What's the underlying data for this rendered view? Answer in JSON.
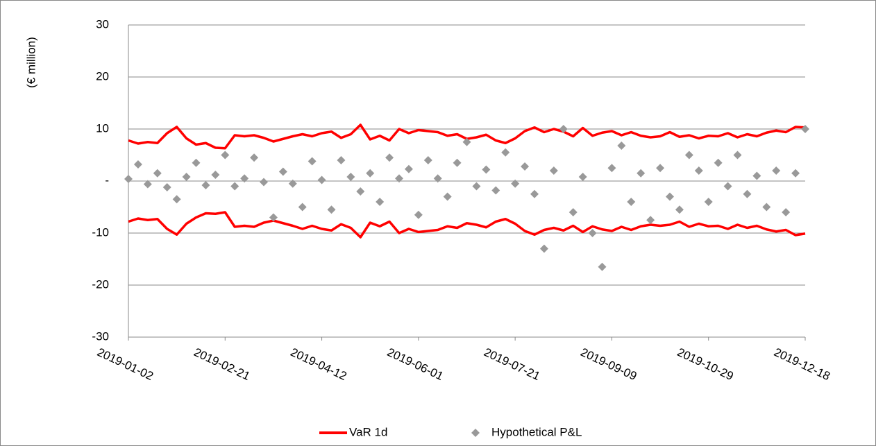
{
  "chart_data": {
    "type": "line-scatter",
    "y_label": "(€ million)",
    "x": [
      "2019-01-02",
      "2019-01-07",
      "2019-01-12",
      "2019-01-17",
      "2019-01-22",
      "2019-01-27",
      "2019-02-01",
      "2019-02-06",
      "2019-02-11",
      "2019-02-16",
      "2019-02-21",
      "2019-02-26",
      "2019-03-03",
      "2019-03-08",
      "2019-03-13",
      "2019-03-18",
      "2019-03-23",
      "2019-03-28",
      "2019-04-02",
      "2019-04-07",
      "2019-04-12",
      "2019-04-17",
      "2019-04-22",
      "2019-04-27",
      "2019-05-02",
      "2019-05-07",
      "2019-05-12",
      "2019-05-17",
      "2019-05-22",
      "2019-05-27",
      "2019-06-01",
      "2019-06-06",
      "2019-06-11",
      "2019-06-16",
      "2019-06-21",
      "2019-06-26",
      "2019-07-01",
      "2019-07-06",
      "2019-07-11",
      "2019-07-16",
      "2019-07-21",
      "2019-07-26",
      "2019-07-31",
      "2019-08-05",
      "2019-08-10",
      "2019-08-15",
      "2019-08-20",
      "2019-08-25",
      "2019-08-30",
      "2019-09-04",
      "2019-09-09",
      "2019-09-14",
      "2019-09-19",
      "2019-09-24",
      "2019-09-29",
      "2019-10-04",
      "2019-10-09",
      "2019-10-14",
      "2019-10-19",
      "2019-10-24",
      "2019-10-29",
      "2019-11-03",
      "2019-11-08",
      "2019-11-13",
      "2019-11-18",
      "2019-11-23",
      "2019-11-28",
      "2019-12-03",
      "2019-12-08",
      "2019-12-13",
      "2019-12-18"
    ],
    "series": [
      {
        "name": "VaR 1d",
        "color": "#ff0000",
        "values": [
          7.8,
          7.2,
          7.5,
          7.3,
          9.2,
          10.4,
          8.2,
          7.0,
          7.3,
          6.4,
          6.3,
          8.8,
          8.6,
          8.8,
          8.3,
          7.6,
          8.1,
          8.6,
          9.0,
          8.6,
          9.2,
          9.5,
          8.3,
          9.0,
          10.8,
          8.0,
          8.7,
          7.8,
          10.0,
          9.2,
          9.8,
          9.6,
          9.4,
          8.7,
          9.0,
          8.1,
          8.4,
          8.9,
          7.8,
          7.3,
          8.2,
          9.6,
          10.3,
          9.4,
          10.0,
          9.5,
          8.6,
          10.2,
          8.7,
          9.3,
          9.6,
          8.8,
          9.4,
          8.7,
          8.4,
          8.6,
          9.4,
          8.5,
          8.8,
          8.2,
          8.7,
          8.6,
          9.2,
          8.4,
          9.0,
          8.6,
          9.3,
          9.7,
          9.4,
          10.4,
          10.3
        ]
      },
      {
        "color": "#ff0000",
        "values": [
          -7.8,
          -7.2,
          -7.5,
          -7.3,
          -9.2,
          -10.3,
          -8.2,
          -7.0,
          -6.2,
          -6.3,
          -6.0,
          -8.8,
          -8.6,
          -8.8,
          -8.0,
          -7.6,
          -8.1,
          -8.6,
          -9.2,
          -8.6,
          -9.2,
          -9.5,
          -8.3,
          -9.0,
          -10.8,
          -8.0,
          -8.7,
          -7.8,
          -10.0,
          -9.2,
          -9.8,
          -9.6,
          -9.4,
          -8.7,
          -9.0,
          -8.1,
          -8.4,
          -8.9,
          -7.8,
          -7.3,
          -8.2,
          -9.6,
          -10.3,
          -9.4,
          -9.0,
          -9.5,
          -8.6,
          -9.8,
          -8.7,
          -9.3,
          -9.6,
          -8.8,
          -9.4,
          -8.7,
          -8.4,
          -8.6,
          -8.4,
          -7.8,
          -8.8,
          -8.2,
          -8.7,
          -8.6,
          -9.2,
          -8.4,
          -9.0,
          -8.6,
          -9.3,
          -9.7,
          -9.4,
          -10.4,
          -10.1
        ]
      },
      {
        "name": "Hypothetical P&L",
        "color": "#999999",
        "type": "scatter",
        "values": [
          0.4,
          3.2,
          -0.6,
          1.5,
          -1.2,
          -3.5,
          0.8,
          3.5,
          -0.8,
          1.2,
          5.0,
          -1.0,
          0.5,
          4.5,
          -0.2,
          -7.0,
          1.8,
          -0.5,
          -5.0,
          3.8,
          0.2,
          -5.5,
          4.0,
          0.8,
          -2.0,
          1.5,
          -4.0,
          4.5,
          0.5,
          2.3,
          -6.5,
          4.0,
          0.5,
          -3.0,
          3.5,
          7.5,
          -1.0,
          2.2,
          -1.8,
          5.5,
          -0.5,
          2.8,
          -2.5,
          -13.0,
          2.0,
          10.0,
          -6.0,
          0.8,
          -10.0,
          -16.5,
          2.5,
          6.8,
          -4.0,
          1.5,
          -7.5,
          2.5,
          -3.0,
          -5.5,
          5.0,
          2.0,
          -4.0,
          3.5,
          -1.0,
          5.0,
          -2.5,
          1.0,
          -5.0,
          2.0,
          -6.0,
          1.5,
          10.0
        ]
      }
    ],
    "ylim": [
      -30,
      30
    ],
    "yticks": [
      -30,
      -20,
      -10,
      {
        "value": 0,
        "label": "-"
      },
      10,
      20,
      30
    ],
    "xlim": [
      "2019-01-02",
      "2019-12-18"
    ],
    "xticks": [
      "2019-01-02",
      "2019-02-21",
      "2019-04-12",
      "2019-06-01",
      "2019-07-21",
      "2019-09-09",
      "2019-10-29",
      "2019-12-18"
    ],
    "grid": true
  }
}
